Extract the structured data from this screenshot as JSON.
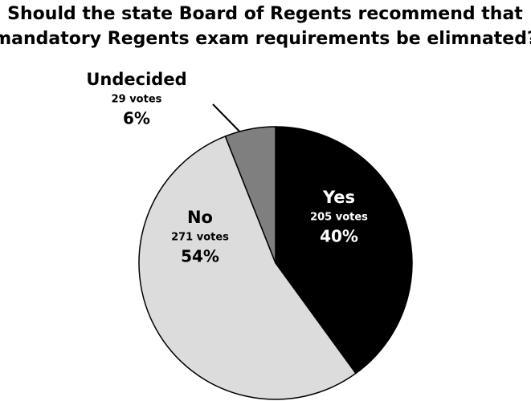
{
  "chart_data": {
    "type": "pie",
    "title": [
      "Should the state Board of Regents recommend that",
      "mandatory Regents exam requirements be elimnated?"
    ],
    "categories": [
      "Yes",
      "No",
      "Undecided"
    ],
    "values": [
      40,
      54,
      6
    ],
    "value_labels": [
      "40%",
      "54%",
      "6%"
    ],
    "votes": [
      205,
      271,
      29
    ],
    "vote_labels": [
      "205 votes",
      "271 votes",
      "29 votes"
    ],
    "colors": [
      "#000000",
      "#dcdcdc",
      "#7f7f7f"
    ]
  }
}
